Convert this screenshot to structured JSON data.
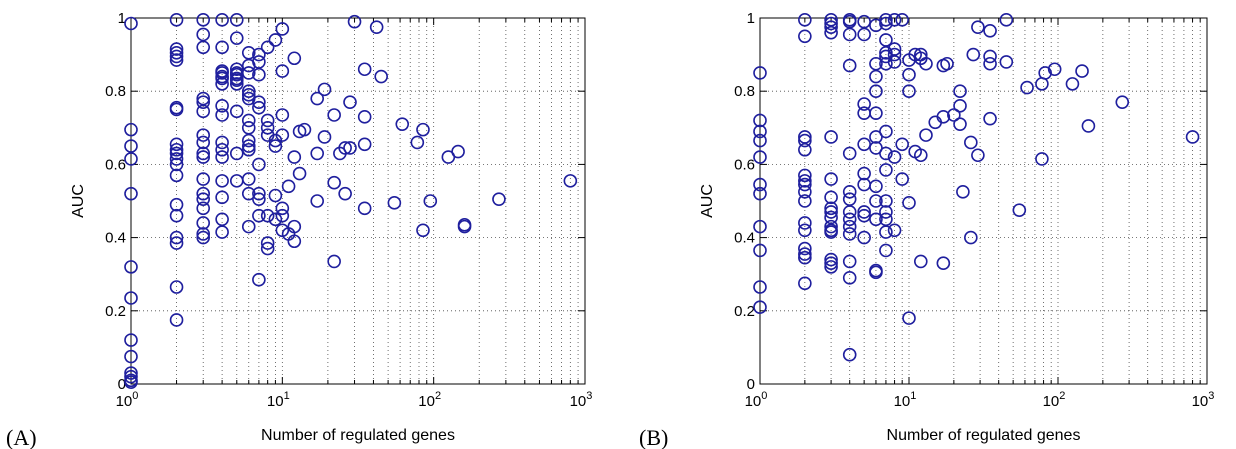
{
  "chart_data": [
    {
      "type": "scatter",
      "panel_label": "(A)",
      "xlabel": "Number of regulated genes",
      "ylabel": "AUC",
      "xscale": "log",
      "xlim": [
        1,
        1000
      ],
      "ylim": [
        0,
        1
      ],
      "grid": true,
      "marker_color": "#1f1f9e",
      "x_ticks": [
        {
          "base": "10",
          "exp": "0",
          "value": 1
        },
        {
          "base": "10",
          "exp": "1",
          "value": 10
        },
        {
          "base": "10",
          "exp": "2",
          "value": 100
        },
        {
          "base": "10",
          "exp": "3",
          "value": 1000
        }
      ],
      "y_ticks": [
        {
          "label": "0",
          "value": 0
        },
        {
          "label": "0.2",
          "value": 0.2
        },
        {
          "label": "0.4",
          "value": 0.4
        },
        {
          "label": "0.6",
          "value": 0.6
        },
        {
          "label": "0.8",
          "value": 0.8
        },
        {
          "label": "1",
          "value": 1
        }
      ],
      "points": [
        [
          1,
          0.985
        ],
        [
          1,
          0.695
        ],
        [
          1,
          0.65
        ],
        [
          1,
          0.615
        ],
        [
          1,
          0.52
        ],
        [
          1,
          0.32
        ],
        [
          1,
          0.235
        ],
        [
          1,
          0.12
        ],
        [
          1,
          0.075
        ],
        [
          1,
          0.03
        ],
        [
          1,
          0.02
        ],
        [
          1,
          0.01
        ],
        [
          1,
          0.005
        ],
        [
          2,
          0.995
        ],
        [
          2,
          0.915
        ],
        [
          2,
          0.905
        ],
        [
          2,
          0.895
        ],
        [
          2,
          0.885
        ],
        [
          2,
          0.755
        ],
        [
          2,
          0.75
        ],
        [
          2,
          0.655
        ],
        [
          2,
          0.64
        ],
        [
          2,
          0.63
        ],
        [
          2,
          0.615
        ],
        [
          2,
          0.6
        ],
        [
          2,
          0.57
        ],
        [
          2,
          0.49
        ],
        [
          2,
          0.46
        ],
        [
          2,
          0.4
        ],
        [
          2,
          0.385
        ],
        [
          2,
          0.265
        ],
        [
          2,
          0.175
        ],
        [
          3,
          0.995
        ],
        [
          3,
          0.955
        ],
        [
          3,
          0.92
        ],
        [
          3,
          0.78
        ],
        [
          3,
          0.77
        ],
        [
          3,
          0.745
        ],
        [
          3,
          0.68
        ],
        [
          3,
          0.66
        ],
        [
          3,
          0.63
        ],
        [
          3,
          0.62
        ],
        [
          3,
          0.56
        ],
        [
          3,
          0.52
        ],
        [
          3,
          0.505
        ],
        [
          3,
          0.48
        ],
        [
          3,
          0.44
        ],
        [
          3,
          0.41
        ],
        [
          3,
          0.4
        ],
        [
          4,
          0.995
        ],
        [
          4,
          0.92
        ],
        [
          4,
          0.855
        ],
        [
          4,
          0.85
        ],
        [
          4,
          0.84
        ],
        [
          4,
          0.835
        ],
        [
          4,
          0.82
        ],
        [
          4,
          0.76
        ],
        [
          4,
          0.735
        ],
        [
          4,
          0.66
        ],
        [
          4,
          0.64
        ],
        [
          4,
          0.62
        ],
        [
          4,
          0.555
        ],
        [
          4,
          0.51
        ],
        [
          4,
          0.45
        ],
        [
          4,
          0.415
        ],
        [
          5,
          0.995
        ],
        [
          5,
          0.945
        ],
        [
          5,
          0.86
        ],
        [
          5,
          0.85
        ],
        [
          5,
          0.845
        ],
        [
          5,
          0.835
        ],
        [
          5,
          0.83
        ],
        [
          5,
          0.82
        ],
        [
          5,
          0.745
        ],
        [
          5,
          0.63
        ],
        [
          5,
          0.555
        ],
        [
          6,
          0.905
        ],
        [
          6,
          0.87
        ],
        [
          6,
          0.85
        ],
        [
          6,
          0.8
        ],
        [
          6,
          0.79
        ],
        [
          6,
          0.78
        ],
        [
          6,
          0.72
        ],
        [
          6,
          0.7
        ],
        [
          6,
          0.665
        ],
        [
          6,
          0.65
        ],
        [
          6,
          0.64
        ],
        [
          6,
          0.56
        ],
        [
          6,
          0.52
        ],
        [
          6,
          0.43
        ],
        [
          7,
          0.9
        ],
        [
          7,
          0.88
        ],
        [
          7,
          0.845
        ],
        [
          7,
          0.77
        ],
        [
          7,
          0.755
        ],
        [
          7,
          0.6
        ],
        [
          7,
          0.52
        ],
        [
          7,
          0.505
        ],
        [
          7,
          0.46
        ],
        [
          7,
          0.285
        ],
        [
          8,
          0.92
        ],
        [
          8,
          0.72
        ],
        [
          8,
          0.7
        ],
        [
          8,
          0.68
        ],
        [
          8,
          0.46
        ],
        [
          8,
          0.385
        ],
        [
          8,
          0.37
        ],
        [
          9,
          0.94
        ],
        [
          9,
          0.665
        ],
        [
          9,
          0.65
        ],
        [
          9,
          0.515
        ],
        [
          9,
          0.45
        ],
        [
          10,
          0.97
        ],
        [
          10,
          0.855
        ],
        [
          10,
          0.735
        ],
        [
          10,
          0.68
        ],
        [
          10,
          0.48
        ],
        [
          10,
          0.46
        ],
        [
          10,
          0.42
        ],
        [
          11,
          0.54
        ],
        [
          11,
          0.41
        ],
        [
          12,
          0.89
        ],
        [
          12,
          0.62
        ],
        [
          12,
          0.43
        ],
        [
          12,
          0.39
        ],
        [
          13,
          0.69
        ],
        [
          13,
          0.575
        ],
        [
          14,
          0.695
        ],
        [
          17,
          0.78
        ],
        [
          17,
          0.63
        ],
        [
          17,
          0.5
        ],
        [
          19,
          0.805
        ],
        [
          19,
          0.675
        ],
        [
          22,
          0.735
        ],
        [
          22,
          0.55
        ],
        [
          22,
          0.335
        ],
        [
          24,
          0.63
        ],
        [
          26,
          0.645
        ],
        [
          26,
          0.52
        ],
        [
          28,
          0.77
        ],
        [
          28,
          0.645
        ],
        [
          30,
          0.99
        ],
        [
          35,
          0.86
        ],
        [
          35,
          0.73
        ],
        [
          35,
          0.655
        ],
        [
          35,
          0.48
        ],
        [
          42,
          0.975
        ],
        [
          45,
          0.84
        ],
        [
          55,
          0.495
        ],
        [
          62,
          0.71
        ],
        [
          78,
          0.66
        ],
        [
          85,
          0.695
        ],
        [
          85,
          0.42
        ],
        [
          95,
          0.5
        ],
        [
          125,
          0.62
        ],
        [
          145,
          0.635
        ],
        [
          160,
          0.435
        ],
        [
          160,
          0.43
        ],
        [
          270,
          0.505
        ],
        [
          800,
          0.555
        ]
      ]
    },
    {
      "type": "scatter",
      "panel_label": "(B)",
      "xlabel": "Number of regulated genes",
      "ylabel": "AUC",
      "xscale": "log",
      "xlim": [
        1,
        1000
      ],
      "ylim": [
        0,
        1
      ],
      "grid": true,
      "marker_color": "#1f1f9e",
      "x_ticks": [
        {
          "base": "10",
          "exp": "0",
          "value": 1
        },
        {
          "base": "10",
          "exp": "1",
          "value": 10
        },
        {
          "base": "10",
          "exp": "2",
          "value": 100
        },
        {
          "base": "10",
          "exp": "3",
          "value": 1000
        }
      ],
      "y_ticks": [
        {
          "label": "0",
          "value": 0
        },
        {
          "label": "0.2",
          "value": 0.2
        },
        {
          "label": "0.4",
          "value": 0.4
        },
        {
          "label": "0.6",
          "value": 0.6
        },
        {
          "label": "0.8",
          "value": 0.8
        },
        {
          "label": "1",
          "value": 1
        }
      ],
      "points": [
        [
          1,
          0.85
        ],
        [
          1,
          0.72
        ],
        [
          1,
          0.69
        ],
        [
          1,
          0.665
        ],
        [
          1,
          0.62
        ],
        [
          1,
          0.545
        ],
        [
          1,
          0.52
        ],
        [
          1,
          0.43
        ],
        [
          1,
          0.365
        ],
        [
          1,
          0.265
        ],
        [
          1,
          0.21
        ],
        [
          2,
          0.995
        ],
        [
          2,
          0.95
        ],
        [
          2,
          0.675
        ],
        [
          2,
          0.665
        ],
        [
          2,
          0.64
        ],
        [
          2,
          0.57
        ],
        [
          2,
          0.555
        ],
        [
          2,
          0.545
        ],
        [
          2,
          0.525
        ],
        [
          2,
          0.5
        ],
        [
          2,
          0.44
        ],
        [
          2,
          0.42
        ],
        [
          2,
          0.37
        ],
        [
          2,
          0.355
        ],
        [
          2,
          0.345
        ],
        [
          2,
          0.275
        ],
        [
          3,
          0.995
        ],
        [
          3,
          0.985
        ],
        [
          3,
          0.975
        ],
        [
          3,
          0.96
        ],
        [
          3,
          0.675
        ],
        [
          3,
          0.56
        ],
        [
          3,
          0.51
        ],
        [
          3,
          0.48
        ],
        [
          3,
          0.47
        ],
        [
          3,
          0.455
        ],
        [
          3,
          0.43
        ],
        [
          3,
          0.42
        ],
        [
          3,
          0.415
        ],
        [
          3,
          0.34
        ],
        [
          3,
          0.33
        ],
        [
          3,
          0.32
        ],
        [
          4,
          0.995
        ],
        [
          4,
          0.99
        ],
        [
          4,
          0.955
        ],
        [
          4,
          0.87
        ],
        [
          4,
          0.63
        ],
        [
          4,
          0.525
        ],
        [
          4,
          0.505
        ],
        [
          4,
          0.47
        ],
        [
          4,
          0.45
        ],
        [
          4,
          0.43
        ],
        [
          4,
          0.41
        ],
        [
          4,
          0.335
        ],
        [
          4,
          0.29
        ],
        [
          4,
          0.08
        ],
        [
          5,
          0.99
        ],
        [
          5,
          0.955
        ],
        [
          5,
          0.765
        ],
        [
          5,
          0.74
        ],
        [
          5,
          0.655
        ],
        [
          5,
          0.575
        ],
        [
          5,
          0.545
        ],
        [
          5,
          0.47
        ],
        [
          5,
          0.46
        ],
        [
          5,
          0.4
        ],
        [
          6,
          0.98
        ],
        [
          6,
          0.875
        ],
        [
          6,
          0.84
        ],
        [
          6,
          0.8
        ],
        [
          6,
          0.74
        ],
        [
          6,
          0.675
        ],
        [
          6,
          0.645
        ],
        [
          6,
          0.54
        ],
        [
          6,
          0.5
        ],
        [
          6,
          0.45
        ],
        [
          6,
          0.31
        ],
        [
          6,
          0.305
        ],
        [
          7,
          0.995
        ],
        [
          7,
          0.985
        ],
        [
          7,
          0.94
        ],
        [
          7,
          0.905
        ],
        [
          7,
          0.895
        ],
        [
          7,
          0.875
        ],
        [
          7,
          0.69
        ],
        [
          7,
          0.63
        ],
        [
          7,
          0.585
        ],
        [
          7,
          0.5
        ],
        [
          7,
          0.47
        ],
        [
          7,
          0.45
        ],
        [
          7,
          0.415
        ],
        [
          7,
          0.365
        ],
        [
          8,
          0.995
        ],
        [
          8,
          0.915
        ],
        [
          8,
          0.9
        ],
        [
          8,
          0.88
        ],
        [
          8,
          0.62
        ],
        [
          8,
          0.42
        ],
        [
          9,
          0.995
        ],
        [
          9,
          0.655
        ],
        [
          9,
          0.56
        ],
        [
          10,
          0.885
        ],
        [
          10,
          0.845
        ],
        [
          10,
          0.8
        ],
        [
          10,
          0.495
        ],
        [
          10,
          0.18
        ],
        [
          11,
          0.9
        ],
        [
          11,
          0.635
        ],
        [
          12,
          0.9
        ],
        [
          12,
          0.89
        ],
        [
          12,
          0.625
        ],
        [
          12,
          0.335
        ],
        [
          13,
          0.875
        ],
        [
          13,
          0.68
        ],
        [
          15,
          0.715
        ],
        [
          17,
          0.87
        ],
        [
          17,
          0.73
        ],
        [
          17,
          0.33
        ],
        [
          18,
          0.875
        ],
        [
          20,
          0.735
        ],
        [
          22,
          0.8
        ],
        [
          22,
          0.76
        ],
        [
          22,
          0.71
        ],
        [
          23,
          0.525
        ],
        [
          26,
          0.66
        ],
        [
          26,
          0.4
        ],
        [
          27,
          0.9
        ],
        [
          29,
          0.975
        ],
        [
          29,
          0.625
        ],
        [
          35,
          0.965
        ],
        [
          35,
          0.895
        ],
        [
          35,
          0.875
        ],
        [
          35,
          0.725
        ],
        [
          45,
          0.995
        ],
        [
          45,
          0.88
        ],
        [
          55,
          0.475
        ],
        [
          62,
          0.81
        ],
        [
          78,
          0.82
        ],
        [
          78,
          0.615
        ],
        [
          82,
          0.85
        ],
        [
          95,
          0.86
        ],
        [
          125,
          0.82
        ],
        [
          145,
          0.855
        ],
        [
          160,
          0.705
        ],
        [
          270,
          0.77
        ],
        [
          800,
          0.675
        ]
      ]
    }
  ]
}
